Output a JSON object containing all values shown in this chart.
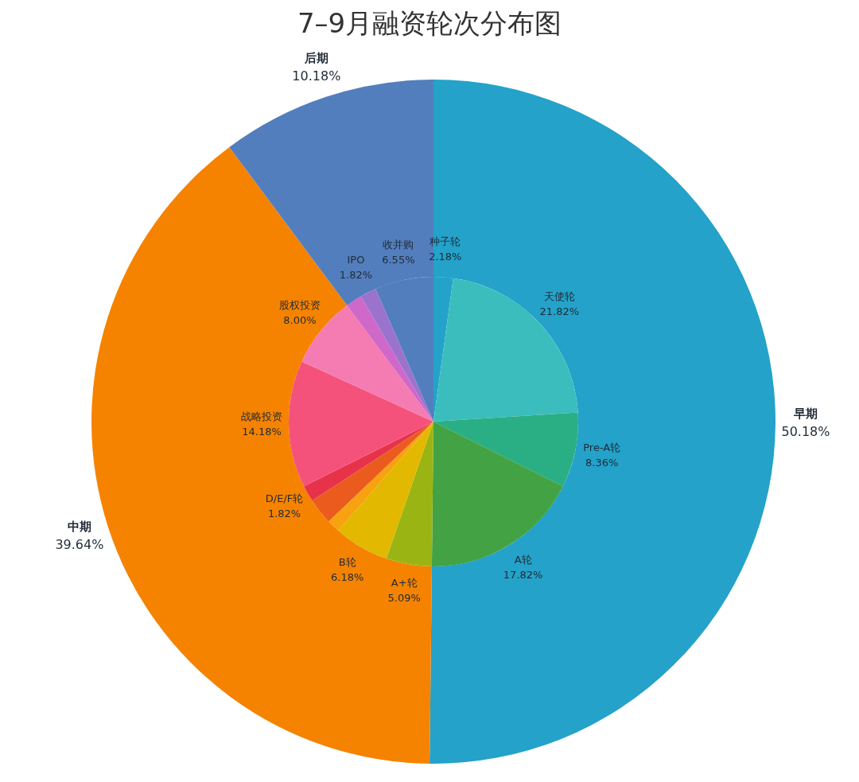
{
  "chart_data": [
    {
      "type": "donut",
      "title": "7–9月融资轮次分布图",
      "categories": [
        "早期",
        "中期",
        "后期"
      ],
      "values": [
        50.18,
        39.64,
        10.18
      ],
      "colors": [
        "#24a2c9",
        "#f58300",
        "#537ebd"
      ],
      "value_labels": [
        "50.18%",
        "39.64%",
        "10.18%"
      ]
    },
    {
      "type": "pie",
      "categories": [
        "种子轮",
        "天使轮",
        "Pre-A轮",
        "A轮",
        "A+轮",
        "B轮",
        null,
        null,
        "D/E/F轮",
        "战略投资",
        "股权投资",
        null,
        "IPO",
        "收并购"
      ],
      "values": [
        2.18,
        21.82,
        8.36,
        17.82,
        5.09,
        6.18,
        1.45,
        2.91,
        1.82,
        14.18,
        8.0,
        1.82,
        1.82,
        6.55
      ],
      "colors": [
        "#24a2c9",
        "#3bbdbe",
        "#2aae84",
        "#43a344",
        "#9ab513",
        "#e2b800",
        "#f8a20f",
        "#eb5b1e",
        "#e7334a",
        "#f5527b",
        "#f57bb3",
        "#cf68c9",
        "#9b73cd",
        "#537ebd"
      ],
      "value_labels": [
        "2.18%",
        "21.82%",
        "8.36%",
        "17.82%",
        "5.09%",
        "6.18%",
        null,
        null,
        "1.82%",
        "14.18%",
        "8.00%",
        null,
        "1.82%",
        "6.55%"
      ]
    }
  ]
}
